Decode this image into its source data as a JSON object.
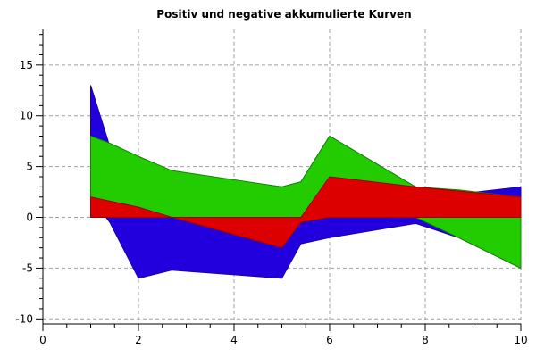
{
  "chart_data": {
    "type": "area",
    "title": "Positiv und negative akkumulierte Kurven",
    "xlabel": "",
    "ylabel": "",
    "xlim": [
      0,
      10
    ],
    "ylim": [
      -10.5,
      18.5
    ],
    "x_ticks": [
      0,
      2,
      4,
      6,
      8,
      10
    ],
    "x_minor_step": 0.5,
    "y_ticks": [
      -10,
      -5,
      0,
      5,
      10,
      15
    ],
    "y_minor_step": 1,
    "grid": true,
    "legend": "none",
    "series": [
      {
        "color": "#2200dd",
        "stroke": "#1a00aa",
        "upper": [
          [
            1,
            13
          ],
          [
            1.4,
            7
          ],
          [
            2,
            6
          ],
          [
            2.7,
            4.5
          ],
          [
            5,
            3
          ],
          [
            5.4,
            3.5
          ],
          [
            6,
            8
          ],
          [
            7.8,
            3
          ],
          [
            8.7,
            2.3
          ],
          [
            10,
            3
          ]
        ],
        "lower": [
          [
            1,
            2
          ],
          [
            1.4,
            -0.5
          ],
          [
            2,
            -6
          ],
          [
            2.7,
            -5.2
          ],
          [
            5,
            -6
          ],
          [
            5.4,
            -2.6
          ],
          [
            6,
            -2
          ],
          [
            7.8,
            -0.6
          ],
          [
            8.7,
            -2
          ],
          [
            10,
            -5
          ]
        ]
      },
      {
        "color": "#22cc00",
        "stroke": "#118800",
        "upper": [
          [
            1,
            8
          ],
          [
            1.4,
            7.3
          ],
          [
            2,
            6
          ],
          [
            2.7,
            4.6
          ],
          [
            5,
            3
          ],
          [
            5.4,
            3.5
          ],
          [
            6,
            8
          ],
          [
            7.8,
            3
          ],
          [
            8.7,
            2.7
          ],
          [
            10,
            2
          ]
        ],
        "lower": [
          [
            1,
            0
          ],
          [
            2,
            0
          ],
          [
            5,
            0
          ],
          [
            5.4,
            0
          ],
          [
            6,
            0
          ],
          [
            7.8,
            0
          ],
          [
            8.7,
            -2
          ],
          [
            10,
            -5
          ]
        ]
      },
      {
        "color": "#dd0000",
        "stroke": "#990000",
        "upper": [
          [
            1,
            2
          ],
          [
            2,
            1
          ],
          [
            2.7,
            0
          ],
          [
            5,
            0
          ],
          [
            5.4,
            0
          ],
          [
            6,
            4
          ],
          [
            7.8,
            3
          ],
          [
            10,
            2
          ]
        ],
        "lower": [
          [
            1,
            0
          ],
          [
            2,
            0
          ],
          [
            2.7,
            0
          ],
          [
            5,
            -3
          ],
          [
            5.4,
            -0.5
          ],
          [
            6,
            0
          ],
          [
            7.8,
            0
          ],
          [
            10,
            0
          ]
        ]
      }
    ]
  }
}
